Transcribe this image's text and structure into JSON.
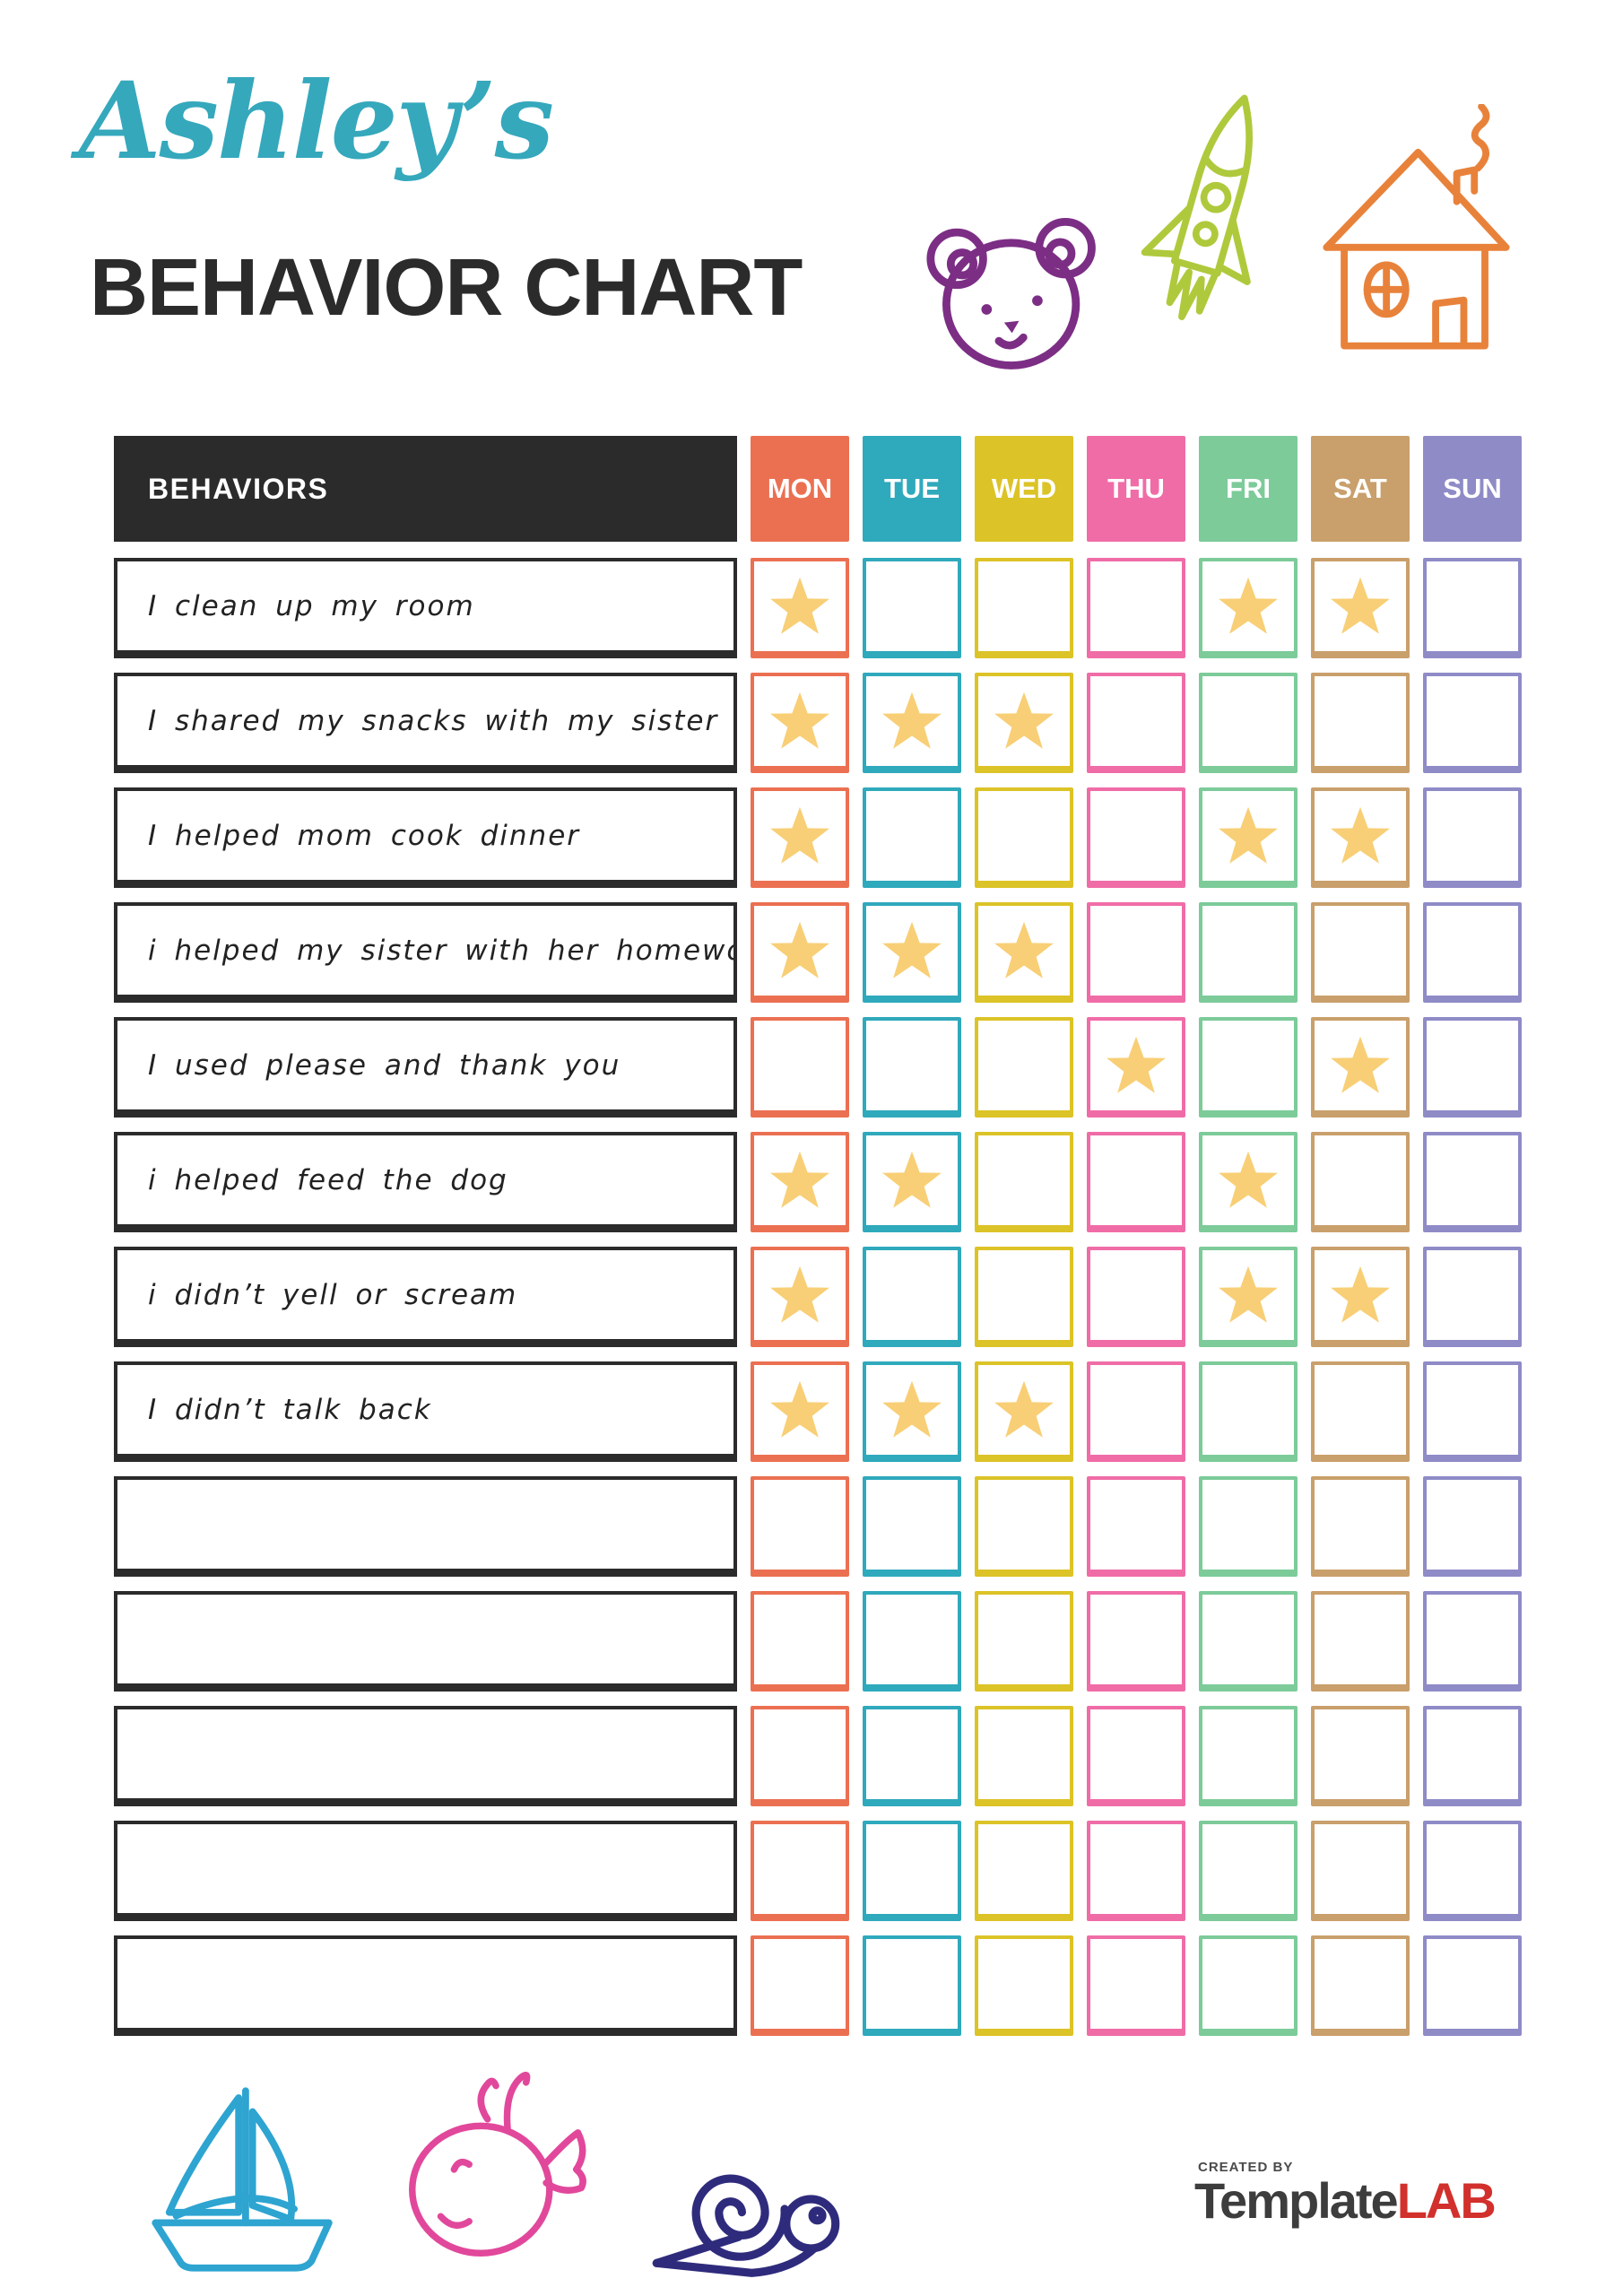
{
  "title": {
    "script": "Ashley’s",
    "main": "BEHAVIOR CHART"
  },
  "table": {
    "behaviors_header": "BEHAVIORS",
    "days": [
      {
        "label": "MON",
        "color": "#EB7052"
      },
      {
        "label": "TUE",
        "color": "#2FA9BC"
      },
      {
        "label": "WED",
        "color": "#DCC327"
      },
      {
        "label": "THU",
        "color": "#F06CA7"
      },
      {
        "label": "FRI",
        "color": "#7CCB99"
      },
      {
        "label": "SAT",
        "color": "#C99F6B"
      },
      {
        "label": "SUN",
        "color": "#8F8BC7"
      }
    ],
    "rows": [
      {
        "label": "I clean up my room",
        "stars": [
          1,
          0,
          0,
          0,
          1,
          1,
          0
        ]
      },
      {
        "label": "I shared my snacks with my sister",
        "stars": [
          1,
          1,
          1,
          0,
          0,
          0,
          0
        ]
      },
      {
        "label": "I helped mom cook dinner",
        "stars": [
          1,
          0,
          0,
          0,
          1,
          1,
          0
        ]
      },
      {
        "label": "i helped my sister with her homework",
        "stars": [
          1,
          1,
          1,
          0,
          0,
          0,
          0
        ]
      },
      {
        "label": "I used please and thank you",
        "stars": [
          0,
          0,
          0,
          1,
          0,
          1,
          0
        ]
      },
      {
        "label": "i helped feed the dog",
        "stars": [
          1,
          1,
          0,
          0,
          1,
          0,
          0
        ]
      },
      {
        "label": "i didn’t yell or scream",
        "stars": [
          1,
          0,
          0,
          0,
          1,
          1,
          0
        ]
      },
      {
        "label": "I didn’t talk back",
        "stars": [
          1,
          1,
          1,
          0,
          0,
          0,
          0
        ]
      },
      {
        "label": "",
        "stars": [
          0,
          0,
          0,
          0,
          0,
          0,
          0
        ]
      },
      {
        "label": "",
        "stars": [
          0,
          0,
          0,
          0,
          0,
          0,
          0
        ]
      },
      {
        "label": "",
        "stars": [
          0,
          0,
          0,
          0,
          0,
          0,
          0
        ]
      },
      {
        "label": "",
        "stars": [
          0,
          0,
          0,
          0,
          0,
          0,
          0
        ]
      },
      {
        "label": "",
        "stars": [
          0,
          0,
          0,
          0,
          0,
          0,
          0
        ]
      }
    ]
  },
  "footer": {
    "created_by": "CREATED BY",
    "brand_primary": "Template",
    "brand_accent": "LAB"
  },
  "colors": {
    "title_script": "#35A8BC",
    "title_main": "#2B2B2B",
    "header_bg": "#2B2B2B",
    "row_border": "#2B2B2B",
    "star": "#F8CF76",
    "doodle_bear": "#7C2E85",
    "doodle_rocket": "#AFC93C",
    "doodle_house": "#E8823B",
    "doodle_boat": "#2EA4D1",
    "doodle_whale": "#E1489B",
    "doodle_snail": "#2F2B7C",
    "brand_dark": "#3D3D3D",
    "brand_red": "#D2302C"
  }
}
